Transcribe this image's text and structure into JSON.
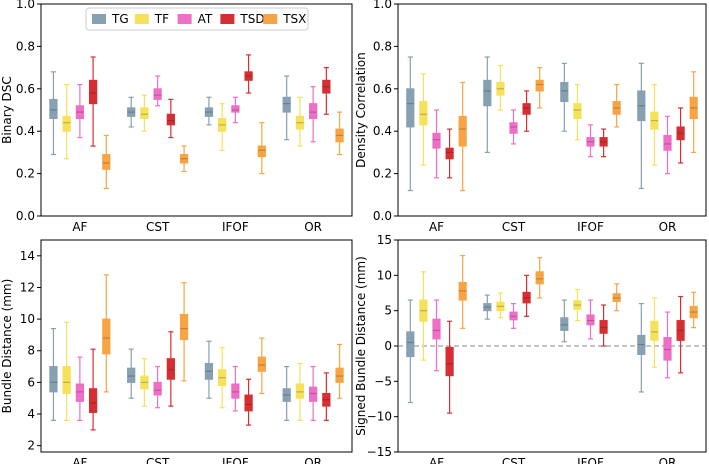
{
  "legend": {
    "entries": [
      {
        "name": "TG",
        "color": "#87a0b2"
      },
      {
        "name": "TF",
        "color": "#f5e15a"
      },
      {
        "name": "AT",
        "color": "#ee6fc6"
      },
      {
        "name": "TSD",
        "color": "#d62f33"
      },
      {
        "name": "TSX",
        "color": "#f7a445"
      }
    ]
  },
  "chart_data": [
    {
      "type": "box",
      "ylabel": "Binary DSC",
      "ylim": [
        0.0,
        1.0
      ],
      "yticks": [
        0.0,
        0.2,
        0.4,
        0.6,
        0.8,
        1.0
      ],
      "ytick_labels": [
        "0.0",
        "0.2",
        "0.4",
        "0.6",
        "0.8",
        "1.0"
      ],
      "categories": [
        "AF",
        "CST",
        "IFOF",
        "OR"
      ],
      "show_legend": true,
      "series": [
        {
          "name": "TG",
          "boxes": [
            [
              0.29,
              0.46,
              0.5,
              0.55,
              0.68
            ],
            [
              0.42,
              0.47,
              0.49,
              0.51,
              0.56
            ],
            [
              0.43,
              0.47,
              0.49,
              0.51,
              0.56
            ],
            [
              0.36,
              0.49,
              0.53,
              0.56,
              0.66
            ]
          ]
        },
        {
          "name": "TF",
          "boxes": [
            [
              0.27,
              0.4,
              0.44,
              0.47,
              0.62
            ],
            [
              0.4,
              0.46,
              0.48,
              0.51,
              0.57
            ],
            [
              0.31,
              0.4,
              0.43,
              0.46,
              0.53
            ],
            [
              0.33,
              0.41,
              0.44,
              0.47,
              0.56
            ]
          ]
        },
        {
          "name": "AT",
          "boxes": [
            [
              0.37,
              0.46,
              0.49,
              0.52,
              0.62
            ],
            [
              0.52,
              0.55,
              0.57,
              0.6,
              0.66
            ],
            [
              0.44,
              0.49,
              0.5,
              0.52,
              0.56
            ],
            [
              0.35,
              0.46,
              0.49,
              0.53,
              0.61
            ]
          ]
        },
        {
          "name": "TSD",
          "boxes": [
            [
              0.33,
              0.53,
              0.58,
              0.64,
              0.75
            ],
            [
              0.37,
              0.43,
              0.45,
              0.48,
              0.55
            ],
            [
              0.58,
              0.64,
              0.66,
              0.68,
              0.76
            ],
            [
              0.48,
              0.58,
              0.61,
              0.64,
              0.7
            ]
          ]
        },
        {
          "name": "TSX",
          "boxes": [
            [
              0.13,
              0.22,
              0.25,
              0.29,
              0.38
            ],
            [
              0.21,
              0.25,
              0.27,
              0.29,
              0.33
            ],
            [
              0.2,
              0.28,
              0.31,
              0.33,
              0.44
            ],
            [
              0.29,
              0.35,
              0.38,
              0.41,
              0.49
            ]
          ]
        }
      ]
    },
    {
      "type": "box",
      "ylabel": "Density Correlation",
      "ylim": [
        0.0,
        1.0
      ],
      "yticks": [
        0.0,
        0.2,
        0.4,
        0.6,
        0.8,
        1.0
      ],
      "ytick_labels": [
        "0.0",
        "0.2",
        "0.4",
        "0.6",
        "0.8",
        "1.0"
      ],
      "categories": [
        "AF",
        "CST",
        "IFOF",
        "OR"
      ],
      "show_legend": false,
      "series": [
        {
          "name": "TG",
          "boxes": [
            [
              0.12,
              0.42,
              0.53,
              0.6,
              0.75
            ],
            [
              0.3,
              0.52,
              0.59,
              0.64,
              0.75
            ],
            [
              0.4,
              0.54,
              0.59,
              0.63,
              0.72
            ],
            [
              0.13,
              0.45,
              0.52,
              0.59,
              0.72
            ]
          ]
        },
        {
          "name": "TF",
          "boxes": [
            [
              0.24,
              0.43,
              0.48,
              0.54,
              0.67
            ],
            [
              0.5,
              0.57,
              0.6,
              0.63,
              0.71
            ],
            [
              0.36,
              0.46,
              0.5,
              0.53,
              0.62
            ],
            [
              0.24,
              0.41,
              0.45,
              0.49,
              0.62
            ]
          ]
        },
        {
          "name": "AT",
          "boxes": [
            [
              0.18,
              0.32,
              0.36,
              0.39,
              0.5
            ],
            [
              0.34,
              0.39,
              0.42,
              0.44,
              0.5
            ],
            [
              0.28,
              0.33,
              0.35,
              0.37,
              0.43
            ],
            [
              0.2,
              0.31,
              0.34,
              0.38,
              0.47
            ]
          ]
        },
        {
          "name": "TSD",
          "boxes": [
            [
              0.18,
              0.27,
              0.3,
              0.32,
              0.41
            ],
            [
              0.4,
              0.48,
              0.51,
              0.53,
              0.59
            ],
            [
              0.28,
              0.33,
              0.35,
              0.37,
              0.41
            ],
            [
              0.25,
              0.36,
              0.39,
              0.42,
              0.51
            ]
          ]
        },
        {
          "name": "TSX",
          "boxes": [
            [
              0.12,
              0.33,
              0.41,
              0.47,
              0.63
            ],
            [
              0.51,
              0.59,
              0.62,
              0.64,
              0.7
            ],
            [
              0.42,
              0.48,
              0.51,
              0.54,
              0.62
            ],
            [
              0.3,
              0.46,
              0.51,
              0.56,
              0.68
            ]
          ]
        }
      ]
    },
    {
      "type": "box",
      "ylabel": "Bundle Distance (mm)",
      "ylim": [
        1.6,
        15.0
      ],
      "yticks": [
        2,
        4,
        6,
        8,
        10,
        12,
        14
      ],
      "ytick_labels": [
        "2",
        "4",
        "6",
        "8",
        "10",
        "12",
        "14"
      ],
      "categories": [
        "AF",
        "CST",
        "IFOF",
        "OR"
      ],
      "show_legend": false,
      "series": [
        {
          "name": "TG",
          "boxes": [
            [
              3.6,
              5.4,
              6.0,
              7.0,
              9.4
            ],
            [
              5.0,
              6.0,
              6.4,
              6.9,
              8.1
            ],
            [
              5.0,
              6.2,
              6.7,
              7.2,
              8.6
            ],
            [
              3.6,
              4.8,
              5.2,
              5.6,
              7.0
            ]
          ]
        },
        {
          "name": "TF",
          "boxes": [
            [
              3.6,
              5.3,
              6.0,
              7.0,
              9.8
            ],
            [
              4.5,
              5.6,
              6.0,
              6.4,
              7.5
            ],
            [
              4.4,
              5.8,
              6.3,
              6.8,
              8.2
            ],
            [
              3.6,
              5.0,
              5.4,
              5.9,
              7.2
            ]
          ]
        },
        {
          "name": "AT",
          "boxes": [
            [
              3.6,
              4.8,
              5.4,
              5.9,
              7.6
            ],
            [
              4.4,
              5.2,
              5.5,
              6.0,
              7.0
            ],
            [
              4.2,
              5.0,
              5.4,
              5.9,
              7.0
            ],
            [
              3.6,
              4.8,
              5.3,
              5.7,
              7.0
            ]
          ]
        },
        {
          "name": "TSD",
          "boxes": [
            [
              3.0,
              4.1,
              4.7,
              5.6,
              8.1
            ],
            [
              4.5,
              6.2,
              6.8,
              7.5,
              9.2
            ],
            [
              3.3,
              4.2,
              4.6,
              5.2,
              6.2
            ],
            [
              3.6,
              4.5,
              4.9,
              5.3,
              6.6
            ]
          ]
        },
        {
          "name": "TSX",
          "boxes": [
            [
              5.4,
              7.8,
              8.8,
              10.0,
              12.8
            ],
            [
              6.1,
              8.7,
              9.4,
              10.3,
              12.3
            ],
            [
              5.3,
              6.7,
              7.1,
              7.6,
              8.8
            ],
            [
              5.0,
              6.0,
              6.4,
              6.9,
              8.4
            ]
          ]
        }
      ]
    },
    {
      "type": "box",
      "ylabel": "Signed Bundle Distance (mm)",
      "ylim": [
        -15,
        15
      ],
      "yticks": [
        -15,
        -10,
        -5,
        0,
        5,
        10,
        15
      ],
      "ytick_labels": [
        "−15",
        "−10",
        "−5",
        "0",
        "5",
        "10",
        "15"
      ],
      "categories": [
        "AF",
        "CST",
        "IFOF",
        "OR"
      ],
      "show_legend": false,
      "reference_line": 0,
      "series": [
        {
          "name": "TG",
          "boxes": [
            [
              -8.0,
              -1.5,
              0.5,
              2.0,
              6.5
            ],
            [
              3.8,
              5.0,
              5.5,
              6.0,
              7.2
            ],
            [
              0.6,
              2.2,
              3.0,
              4.0,
              6.5
            ],
            [
              -6.5,
              -1.2,
              0.2,
              1.5,
              6.0
            ]
          ]
        },
        {
          "name": "TF",
          "boxes": [
            [
              -2.0,
              3.5,
              5.0,
              6.5,
              10.5
            ],
            [
              4.0,
              5.0,
              5.6,
              6.2,
              7.5
            ],
            [
              3.6,
              5.2,
              5.8,
              6.4,
              8.0
            ],
            [
              -3.0,
              0.8,
              2.0,
              3.5,
              6.8
            ]
          ]
        },
        {
          "name": "AT",
          "boxes": [
            [
              -3.5,
              1.0,
              2.2,
              3.8,
              6.5
            ],
            [
              2.5,
              3.7,
              4.2,
              4.8,
              6.0
            ],
            [
              1.0,
              3.0,
              3.6,
              4.4,
              6.5
            ],
            [
              -4.5,
              -2.0,
              -0.5,
              1.2,
              4.8
            ]
          ]
        },
        {
          "name": "TSD",
          "boxes": [
            [
              -9.5,
              -4.2,
              -2.5,
              -0.2,
              3.5
            ],
            [
              4.2,
              6.1,
              6.8,
              7.6,
              10.0
            ],
            [
              0.0,
              1.8,
              2.6,
              3.6,
              5.8
            ],
            [
              -3.8,
              0.8,
              2.2,
              3.6,
              7.0
            ]
          ]
        },
        {
          "name": "TSX",
          "boxes": [
            [
              2.5,
              6.5,
              7.8,
              9.0,
              12.8
            ],
            [
              6.8,
              8.8,
              9.5,
              10.5,
              12.5
            ],
            [
              5.0,
              6.3,
              6.8,
              7.4,
              8.8
            ],
            [
              2.6,
              4.0,
              4.8,
              5.6,
              7.6
            ]
          ]
        }
      ]
    }
  ]
}
